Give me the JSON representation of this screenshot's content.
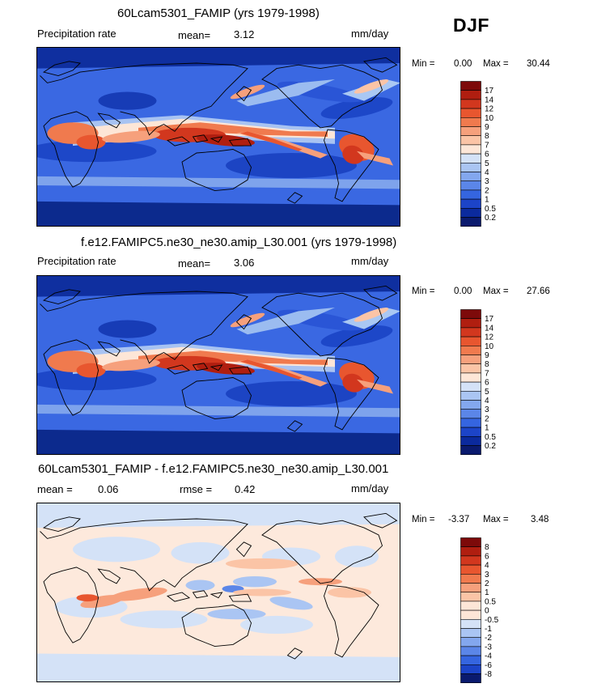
{
  "season": "DJF",
  "panels": [
    {
      "title": "60Lcam5301_FAMIP (yrs 1979-1998)",
      "left_label": "Precipitation rate",
      "mean_label": "mean=",
      "mean_value": "3.12",
      "units": "mm/day",
      "min_label": "Min =",
      "min_value": "0.00",
      "max_label": "Max =",
      "max_value": "30.44",
      "colorbar_levels": [
        "17",
        "14",
        "12",
        "10",
        "9",
        "8",
        "7",
        "6",
        "5",
        "4",
        "3",
        "2",
        "1",
        "0.5",
        "0.2"
      ],
      "colorbar_colors": [
        "#7d0a0a",
        "#b01e10",
        "#d2371e",
        "#e8562f",
        "#f07a4e",
        "#f6a07c",
        "#fbc4a6",
        "#fde6d7",
        "#d4e2f7",
        "#aac5f3",
        "#83a7ee",
        "#5b86e8",
        "#3565e0",
        "#1c44c8",
        "#0b2a9d",
        "#0a1a6e"
      ],
      "field": "precip"
    },
    {
      "title": "f.e12.FAMIPC5.ne30_ne30.amip_L30.001 (yrs 1979-1998)",
      "left_label": "Precipitation rate",
      "mean_label": "mean=",
      "mean_value": "3.06",
      "units": "mm/day",
      "min_label": "Min =",
      "min_value": "0.00",
      "max_label": "Max =",
      "max_value": "27.66",
      "colorbar_levels": [
        "17",
        "14",
        "12",
        "10",
        "9",
        "8",
        "7",
        "6",
        "5",
        "4",
        "3",
        "2",
        "1",
        "0.5",
        "0.2"
      ],
      "colorbar_colors": [
        "#7d0a0a",
        "#b01e10",
        "#d2371e",
        "#e8562f",
        "#f07a4e",
        "#f6a07c",
        "#fbc4a6",
        "#fde6d7",
        "#d4e2f7",
        "#aac5f3",
        "#83a7ee",
        "#5b86e8",
        "#3565e0",
        "#1c44c8",
        "#0b2a9d",
        "#0a1a6e"
      ],
      "field": "precip"
    },
    {
      "title": "60Lcam5301_FAMIP - f.e12.FAMIPC5.ne30_ne30.amip_L30.001",
      "mean_label": "mean =",
      "mean_value": "0.06",
      "rmse_label": "rmse =",
      "rmse_value": "0.42",
      "units": "mm/day",
      "min_label": "Min =",
      "min_value": "-3.37",
      "max_label": "Max =",
      "max_value": "3.48",
      "colorbar_levels": [
        "8",
        "6",
        "4",
        "3",
        "2",
        "1",
        "0.5",
        "0",
        "-0.5",
        "-1",
        "-2",
        "-3",
        "-4",
        "-6",
        "-8"
      ],
      "colorbar_colors": [
        "#7d0a0a",
        "#b01e10",
        "#d2371e",
        "#e8562f",
        "#f07a4e",
        "#f6a07c",
        "#fbc4a6",
        "#fde6d7",
        "#fde6d7",
        "#d4e2f7",
        "#aac5f3",
        "#83a7ee",
        "#5b86e8",
        "#3565e0",
        "#1c44c8",
        "#0a1a6e"
      ],
      "field": "diff"
    }
  ]
}
